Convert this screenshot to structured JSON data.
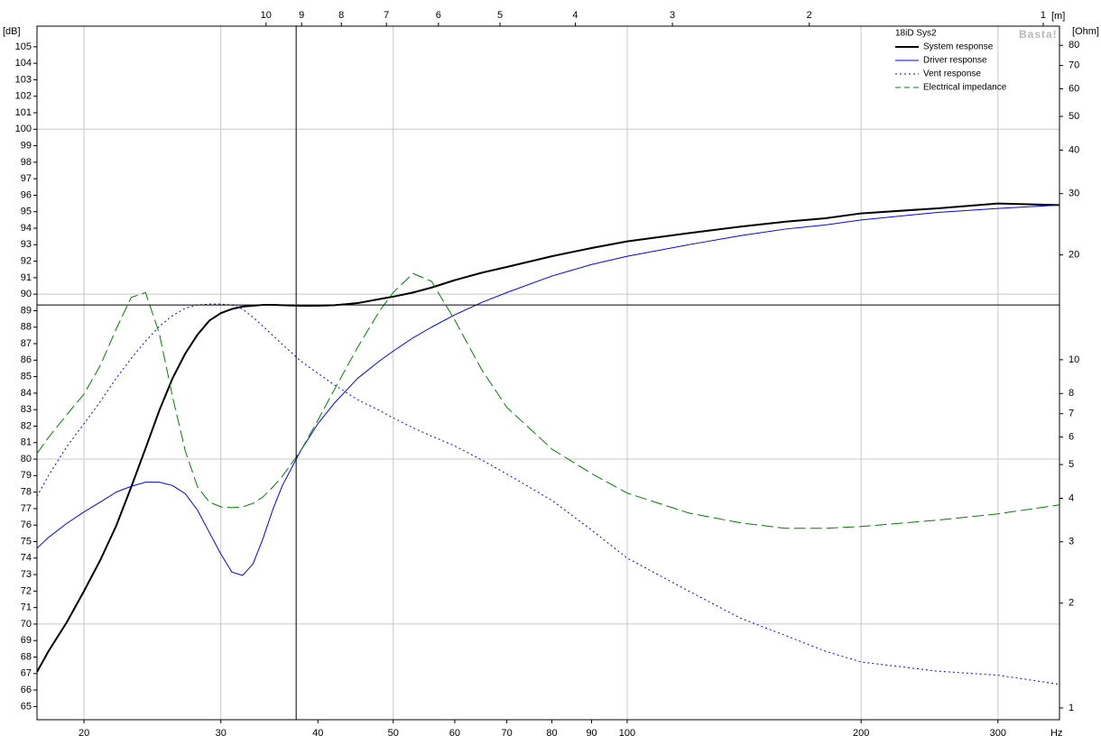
{
  "chart_data": {
    "type": "line",
    "legend_title": "18iD Sys2",
    "watermark": "Basta!",
    "legend": "top-right",
    "x_unit": "Hz",
    "y_unit": "[dB]",
    "y2_unit": "[Ohm]",
    "x2_unit": "[m]",
    "xscale": "log",
    "y2scale": "log",
    "x2scale": "log",
    "x": [
      17.4,
      18,
      19,
      20,
      21,
      22,
      23,
      24,
      25,
      26,
      27,
      28,
      29,
      30,
      31,
      32,
      33,
      34,
      35,
      36,
      38,
      40,
      42,
      45,
      48,
      50,
      53,
      56,
      60,
      65,
      70,
      80,
      90,
      100,
      120,
      140,
      160,
      180,
      200,
      250,
      300,
      360
    ],
    "xlim": [
      17.4,
      360
    ],
    "xticks": [
      20,
      30,
      40,
      50,
      60,
      70,
      80,
      90,
      100,
      200,
      300
    ],
    "xgrid": [
      20,
      30,
      50,
      100,
      200,
      300
    ],
    "x2lim": [
      19.71,
      0.953
    ],
    "x2ticks": [
      10,
      9,
      8,
      7,
      6,
      5,
      4,
      3,
      2,
      1
    ],
    "ylim": [
      64.2,
      106.25
    ],
    "yticks": [
      65,
      66,
      67,
      68,
      69,
      70,
      71,
      72,
      73,
      74,
      75,
      76,
      77,
      78,
      79,
      80,
      81,
      82,
      83,
      84,
      85,
      86,
      87,
      88,
      89,
      90,
      91,
      92,
      93,
      94,
      95,
      96,
      97,
      98,
      99,
      100,
      101,
      102,
      103,
      104,
      105
    ],
    "ygrid": [
      70,
      80,
      90,
      100
    ],
    "y2lim": [
      0.925,
      90.8
    ],
    "y2ticks": [
      1,
      2,
      3,
      4,
      5,
      6,
      7,
      8,
      10,
      20,
      30,
      40,
      50,
      60,
      70,
      80
    ],
    "cursor": {
      "x": 37.5,
      "y": 89.35
    },
    "series": [
      {
        "name": "System response",
        "color": "#000000",
        "width": 2,
        "dash": "solid",
        "values": [
          67.1,
          68.35,
          70.1,
          72.0,
          73.9,
          75.95,
          78.3,
          80.65,
          82.95,
          84.9,
          86.4,
          87.55,
          88.4,
          88.85,
          89.1,
          89.25,
          89.3,
          89.35,
          89.35,
          89.33,
          89.3,
          89.3,
          89.33,
          89.46,
          89.7,
          89.85,
          90.1,
          90.4,
          90.85,
          91.3,
          91.65,
          92.3,
          92.8,
          93.2,
          93.7,
          94.1,
          94.4,
          94.6,
          94.9,
          95.2,
          95.5,
          95.4
        ]
      },
      {
        "name": "Driver response",
        "color": "#0000ff",
        "width": 1,
        "dash": "solid",
        "values": [
          74.6,
          75.25,
          76.1,
          76.8,
          77.4,
          78.0,
          78.35,
          78.6,
          78.6,
          78.4,
          77.9,
          76.9,
          75.55,
          74.25,
          73.15,
          72.95,
          73.65,
          75.2,
          76.95,
          78.4,
          80.5,
          82.15,
          83.4,
          84.9,
          85.95,
          86.55,
          87.35,
          88.0,
          88.75,
          89.5,
          90.1,
          91.1,
          91.8,
          92.3,
          93.0,
          93.55,
          93.95,
          94.2,
          94.5,
          94.95,
          95.2,
          95.4
        ]
      },
      {
        "name": "Vent response",
        "color": "#0000ff",
        "width": 1,
        "dash": "dotted",
        "values": [
          77.75,
          79.0,
          80.75,
          82.15,
          83.5,
          84.9,
          86.1,
          87.15,
          88.05,
          88.7,
          89.15,
          89.35,
          89.4,
          89.4,
          89.35,
          89.1,
          88.6,
          88.05,
          87.5,
          86.95,
          85.95,
          85.2,
          84.5,
          83.6,
          82.95,
          82.5,
          81.9,
          81.4,
          80.8,
          79.95,
          79.1,
          77.5,
          75.7,
          74.0,
          72.0,
          70.35,
          69.3,
          68.35,
          67.7,
          67.15,
          66.9,
          66.35
        ]
      },
      {
        "name": "Electrical impedance",
        "color": "#008000",
        "width": 1,
        "dash": "dashed",
        "axis": "y2",
        "values": [
          5.38,
          5.98,
          6.95,
          7.97,
          9.65,
          12.25,
          15.1,
          15.6,
          11.9,
          7.83,
          5.47,
          4.31,
          3.9,
          3.78,
          3.76,
          3.78,
          3.87,
          4.04,
          4.31,
          4.63,
          5.47,
          6.71,
          8.21,
          10.86,
          13.8,
          15.6,
          17.7,
          16.8,
          13.0,
          9.36,
          7.3,
          5.54,
          4.71,
          4.14,
          3.63,
          3.4,
          3.28,
          3.28,
          3.32,
          3.46,
          3.61,
          3.83
        ]
      }
    ]
  }
}
